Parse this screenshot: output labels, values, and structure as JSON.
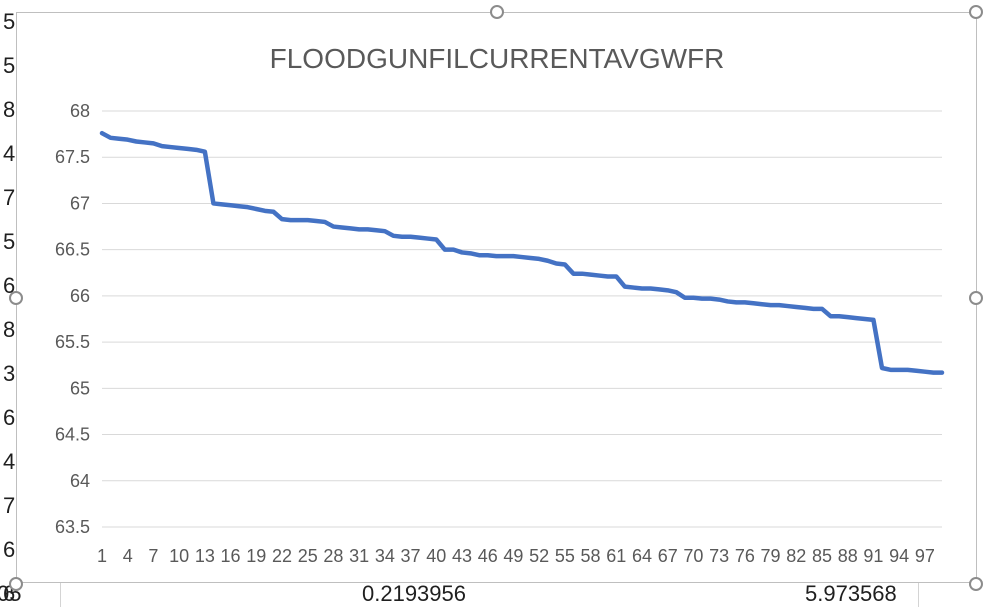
{
  "sheet": {
    "left_column_fragments": [
      "5",
      "5",
      "8",
      "4",
      "7",
      "5",
      "6",
      "8",
      "3",
      "6",
      "4",
      "7",
      "6",
      "6"
    ],
    "bottom_row_fragments": [
      "05",
      "0.2193956",
      "5.973568"
    ]
  },
  "chart_data": {
    "type": "line",
    "title": "FLOODGUNFILCURRENTAVGWFR",
    "xlabel": "",
    "ylabel": "",
    "ylim": [
      63.5,
      68
    ],
    "yticks": [
      "63.5",
      "64",
      "64.5",
      "65",
      "65.5",
      "66",
      "66.5",
      "67",
      "67.5",
      "68"
    ],
    "xticks": [
      "1",
      "4",
      "7",
      "10",
      "13",
      "16",
      "19",
      "22",
      "25",
      "28",
      "31",
      "34",
      "37",
      "40",
      "43",
      "46",
      "49",
      "52",
      "55",
      "58",
      "61",
      "64",
      "67",
      "70",
      "73",
      "76",
      "79",
      "82",
      "85",
      "88",
      "91",
      "94",
      "97"
    ],
    "x_range": [
      1,
      99
    ],
    "grid": true,
    "legend": "none",
    "line_color": "#4472c4",
    "series": [
      {
        "values": [
          67.76,
          67.71,
          67.7,
          67.69,
          67.67,
          67.66,
          67.65,
          67.62,
          67.61,
          67.6,
          67.59,
          67.58,
          67.56,
          67.0,
          66.99,
          66.98,
          66.97,
          66.96,
          66.94,
          66.92,
          66.91,
          66.83,
          66.82,
          66.82,
          66.82,
          66.81,
          66.8,
          66.75,
          66.74,
          66.73,
          66.72,
          66.72,
          66.71,
          66.7,
          66.65,
          66.64,
          66.64,
          66.63,
          66.62,
          66.61,
          66.5,
          66.5,
          66.47,
          66.46,
          66.44,
          66.44,
          66.43,
          66.43,
          66.43,
          66.42,
          66.41,
          66.4,
          66.38,
          66.35,
          66.34,
          66.24,
          66.24,
          66.23,
          66.22,
          66.21,
          66.21,
          66.1,
          66.09,
          66.08,
          66.08,
          66.07,
          66.06,
          66.04,
          65.98,
          65.98,
          65.97,
          65.97,
          65.96,
          65.94,
          65.93,
          65.93,
          65.92,
          65.91,
          65.9,
          65.9,
          65.89,
          65.88,
          65.87,
          65.86,
          65.86,
          65.78,
          65.78,
          65.77,
          65.76,
          65.75,
          65.74,
          65.22,
          65.2,
          65.2,
          65.2,
          65.19,
          65.18,
          65.17,
          65.17
        ]
      }
    ]
  }
}
